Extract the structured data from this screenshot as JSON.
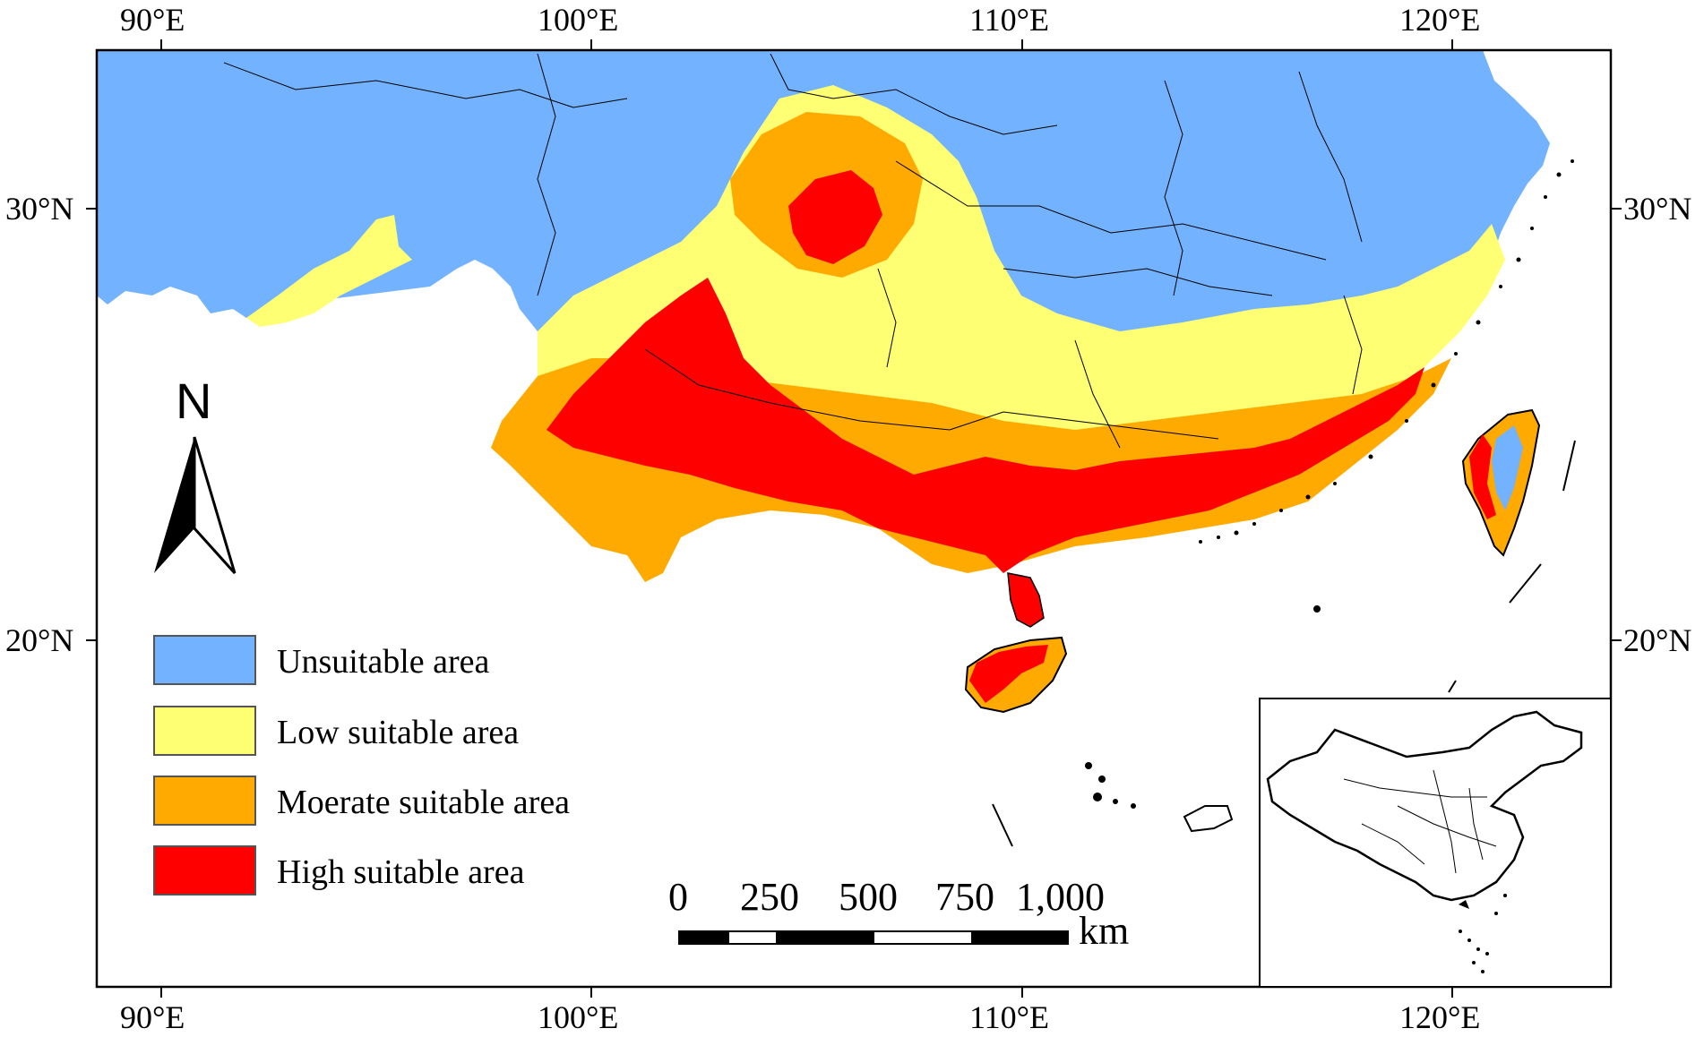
{
  "axes": {
    "top_lon_labels": [
      "90°E",
      "100°E",
      "110°E",
      "120°E"
    ],
    "bottom_lon_labels": [
      "90°E",
      "100°E",
      "110°E",
      "120°E"
    ],
    "left_lat_labels": [
      "30°N",
      "20°N"
    ],
    "right_lat_labels": [
      "30°N",
      "20°N"
    ]
  },
  "north_arrow": {
    "label": "N",
    "icon": "north-arrow-icon"
  },
  "legend": {
    "items": [
      {
        "label": "Unsuitable area",
        "color": "#73b2ff"
      },
      {
        "label": "Low suitable area",
        "color": "#ffff73"
      },
      {
        "label": "Moerate suitable area",
        "color": "#ffaa00"
      },
      {
        "label": "High suitable area",
        "color": "#ff0000"
      }
    ]
  },
  "scale_bar": {
    "ticks": [
      "0",
      "250",
      "500",
      "750",
      "1,000"
    ],
    "unit": "km"
  },
  "inset": {
    "description_icon": "china-inset-map-icon"
  }
}
